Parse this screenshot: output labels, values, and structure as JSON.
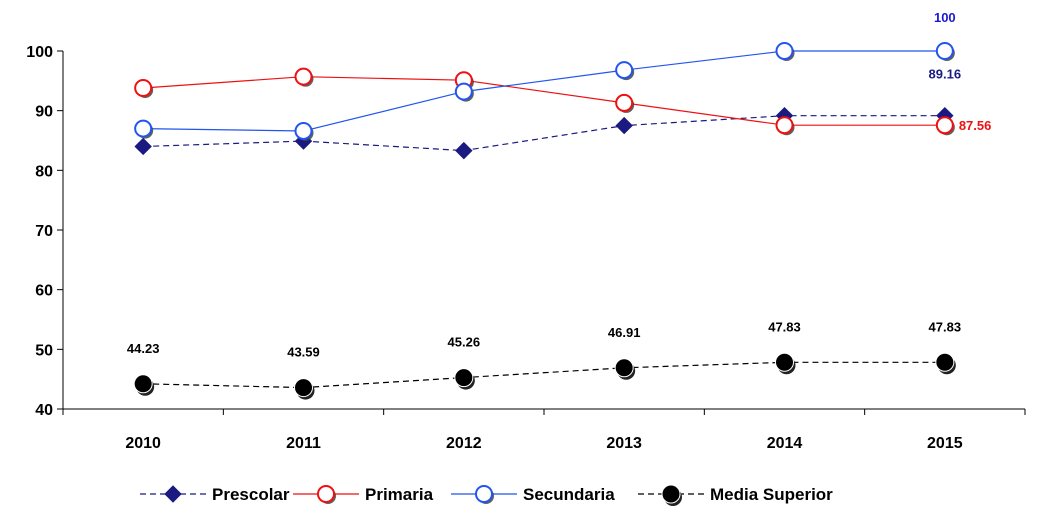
{
  "chart_data": {
    "type": "line",
    "title": "",
    "xlabel": "",
    "ylabel": "",
    "categories": [
      "2010",
      "2011",
      "2012",
      "2013",
      "2014",
      "2015"
    ],
    "ylim": [
      40,
      100
    ],
    "yticks": [
      "40",
      "50",
      "60",
      "70",
      "80",
      "90",
      "100"
    ],
    "grid": false,
    "legend_position": "bottom",
    "series": [
      {
        "name": "Prescolar",
        "values": [
          84.0,
          84.9,
          83.3,
          87.5,
          89.16,
          89.16
        ],
        "color": "#1a1a80",
        "line_style": "dashed",
        "marker": "diamond",
        "labels": {
          "5": "89.16"
        },
        "label_color": "#1a1a80"
      },
      {
        "name": "Primaria",
        "values": [
          93.8,
          95.7,
          95.1,
          91.3,
          87.56,
          87.56
        ],
        "color": "#ee1111",
        "line_style": "solid",
        "marker": "circle-open",
        "labels": {
          "5": "87.56"
        },
        "label_color": "#ee1111"
      },
      {
        "name": "Secundaria",
        "values": [
          87.0,
          86.6,
          93.2,
          96.8,
          100,
          100
        ],
        "color": "#2255ee",
        "line_style": "solid",
        "marker": "circle-open",
        "labels": {
          "5": "100"
        },
        "label_color": "#1a1ad0"
      },
      {
        "name": "Media Superior",
        "values": [
          44.23,
          43.59,
          45.26,
          46.91,
          47.83,
          47.83
        ],
        "color": "#000000",
        "line_style": "dashed",
        "marker": "circle-filled",
        "labels": {
          "0": "44.23",
          "1": "43.59",
          "2": "45.26",
          "3": "46.91",
          "4": "47.83",
          "5": "47.83"
        },
        "label_color": "#000000"
      }
    ]
  }
}
